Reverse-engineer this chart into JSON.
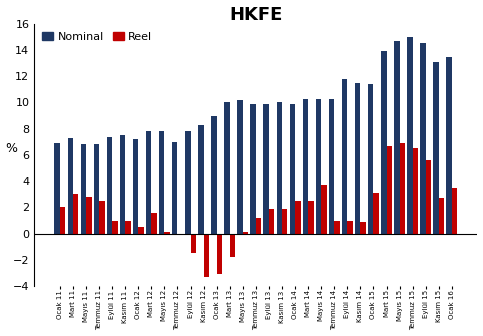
{
  "title": "HKFE",
  "ylabel": "%",
  "ylim": [
    -4,
    16
  ],
  "yticks": [
    -4,
    -2,
    0,
    2,
    4,
    6,
    8,
    10,
    12,
    14,
    16
  ],
  "categories": [
    "Ocak 11",
    "Mart 11",
    "Mayıs 11",
    "Temmuz 11",
    "Eylül 11",
    "Kasım 11",
    "Ocak 12",
    "Mart 12",
    "Mayıs 12",
    "Temmuz 12",
    "Eylül 12",
    "Kasım 12",
    "Ocak 13",
    "Mart 13",
    "Mayıs 13",
    "Temmuz 13",
    "Eylül 13",
    "Kasım 13",
    "Ocak 14",
    "Mart 14",
    "Mayıs 14",
    "Temmuz 14",
    "Eylül 14",
    "Kasım 14",
    "Ocak 15",
    "Mart 15",
    "Mayıs 15",
    "Temmuz 15",
    "Eylül 15",
    "Kasım 15",
    "Ocak 16"
  ],
  "nominal": [
    6.9,
    7.3,
    6.8,
    6.8,
    7.4,
    7.5,
    7.2,
    7.8,
    7.8,
    7.0,
    7.8,
    8.3,
    9.0,
    10.0,
    10.2,
    9.9,
    9.9,
    10.0,
    9.9,
    10.3,
    10.3,
    10.3,
    11.8,
    11.5,
    11.4,
    13.9,
    14.7,
    15.0,
    14.5,
    13.1,
    13.5
  ],
  "reel": [
    2.0,
    3.0,
    2.8,
    2.5,
    1.0,
    1.0,
    0.5,
    1.6,
    0.1,
    -0.1,
    -1.5,
    -3.3,
    -3.1,
    -1.8,
    0.1,
    1.2,
    1.9,
    1.9,
    2.5,
    2.5,
    3.7,
    1.0,
    1.0,
    0.9,
    3.1,
    6.7,
    6.9,
    6.5,
    5.6,
    2.7,
    3.5
  ],
  "nominal_color": "#1F3864",
  "reel_color": "#C00000",
  "background_color": "#FFFFFF",
  "legend_nominal": "Nominal",
  "legend_reel": "Reel",
  "bar_width": 0.42,
  "title_fontsize": 13,
  "tick_fontsize": 5.5,
  "legend_fontsize": 8
}
